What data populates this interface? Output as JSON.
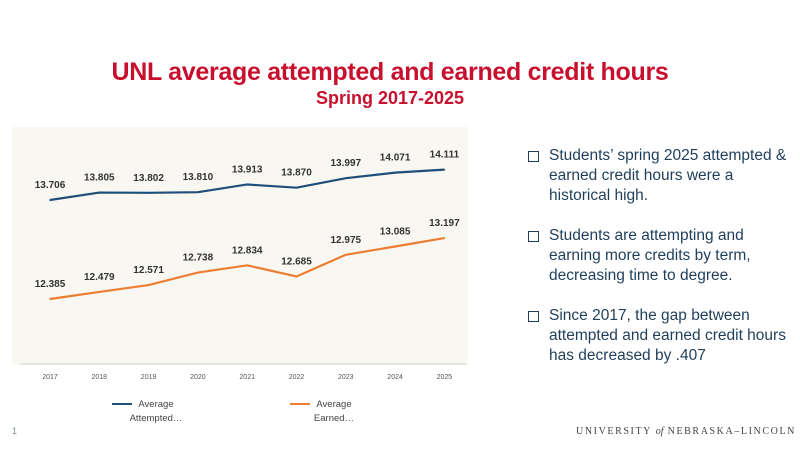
{
  "chart_data": {
    "type": "line",
    "title": "UNL average attempted and earned credit hours",
    "subtitle": "Spring 2017-2025",
    "categories": [
      "2017",
      "2018",
      "2019",
      "2020",
      "2021",
      "2022",
      "2023",
      "2024",
      "2025"
    ],
    "series": [
      {
        "name": "Average Attempted…",
        "values": [
          13.706,
          13.805,
          13.802,
          13.81,
          13.913,
          13.87,
          13.997,
          14.071,
          14.111
        ],
        "labels": [
          "13.706",
          "13.805",
          "13.802",
          "13.810",
          "13.913",
          "13.870",
          "13.997",
          "14.071",
          "14.111"
        ]
      },
      {
        "name": "Average Earned…",
        "values": [
          12.385,
          12.479,
          12.571,
          12.738,
          12.834,
          12.685,
          12.975,
          13.085,
          13.197
        ],
        "labels": [
          "12.385",
          "12.479",
          "12.571",
          "12.738",
          "12.834",
          "12.685",
          "12.975",
          "13.085",
          "13.197"
        ]
      }
    ],
    "ylim": [
      11.9,
      14.4
    ],
    "grid": false,
    "legend": "bottom",
    "colors": {
      "attempted": "#1f4e79",
      "earned": "#ed7d31"
    }
  },
  "bullets": [
    "Students’ spring 2025 attempted & earned credit hours were a historical high.",
    "Students are attempting and earning more credits by term, decreasing time to degree.",
    "Since 2017, the gap between attempted and earned credit hours has decreased by .407"
  ],
  "footer": {
    "page_number": "1",
    "logo_before": "UNIVERSITY",
    "logo_of": "of",
    "logo_after": "NEBRASKA–LINCOLN"
  }
}
